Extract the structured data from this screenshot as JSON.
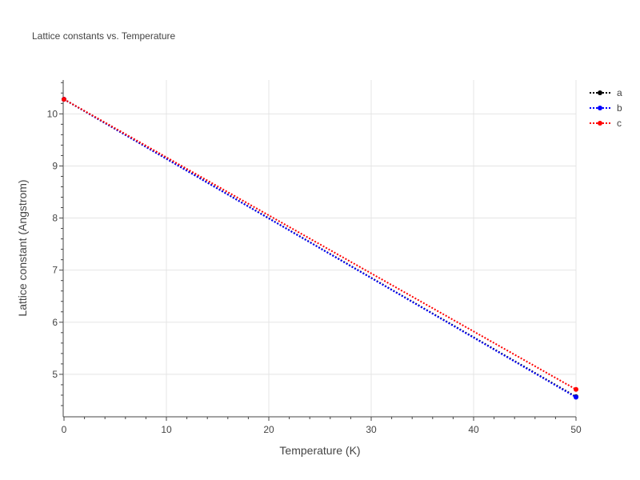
{
  "chart_data": {
    "type": "line",
    "title": "Lattice constants vs. Temperature",
    "xlabel": "Temperature (K)",
    "ylabel": "Lattice constant (Angstrom)",
    "xlim": [
      0,
      50
    ],
    "ylim": [
      4.2,
      10.65
    ],
    "x_ticks": [
      "0",
      "10",
      "20",
      "30",
      "40",
      "50"
    ],
    "y_ticks": [
      "5",
      "6",
      "7",
      "8",
      "9",
      "10"
    ],
    "grid": true,
    "legend": "top-right",
    "series": [
      {
        "name": "a",
        "color": "#000000",
        "x": [
          0,
          50
        ],
        "y": [
          10.28,
          4.57
        ]
      },
      {
        "name": "b",
        "color": "#0000ff",
        "x": [
          0,
          50
        ],
        "y": [
          10.28,
          4.56
        ]
      },
      {
        "name": "c",
        "color": "#ff0000",
        "x": [
          0,
          50
        ],
        "y": [
          10.28,
          4.71
        ]
      }
    ]
  }
}
